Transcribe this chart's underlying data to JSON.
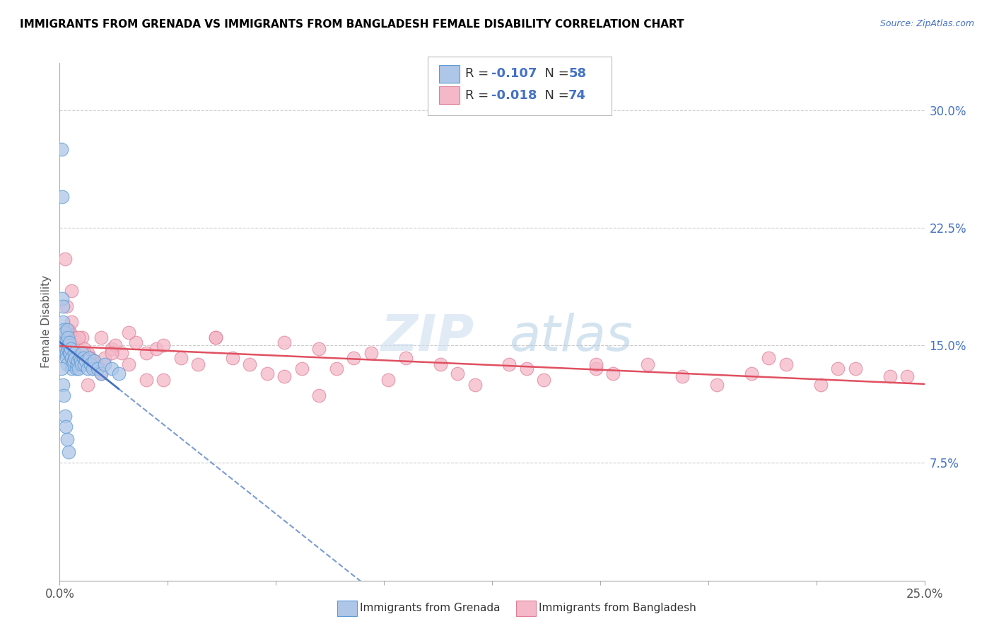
{
  "title": "IMMIGRANTS FROM GRENADA VS IMMIGRANTS FROM BANGLADESH FEMALE DISABILITY CORRELATION CHART",
  "source": "Source: ZipAtlas.com",
  "ylabel": "Female Disability",
  "y_ticks": [
    7.5,
    15.0,
    22.5,
    30.0
  ],
  "y_tick_labels": [
    "7.5%",
    "15.0%",
    "22.5%",
    "30.0%"
  ],
  "x_range": [
    0.0,
    25.0
  ],
  "y_range": [
    0.0,
    33.0
  ],
  "color_grenada": "#aec6e8",
  "color_bangladesh": "#f4b8c8",
  "color_grenada_edge": "#5b9bd5",
  "color_bangladesh_edge": "#e08098",
  "color_grenada_line": "#4472c4",
  "color_bangladesh_line": "#e05060",
  "watermark_zip": "#c8dff0",
  "watermark_atlas": "#a0b8d0",
  "grenada_x": [
    0.05,
    0.07,
    0.08,
    0.09,
    0.1,
    0.11,
    0.12,
    0.13,
    0.14,
    0.15,
    0.16,
    0.17,
    0.18,
    0.19,
    0.2,
    0.21,
    0.22,
    0.23,
    0.24,
    0.25,
    0.27,
    0.28,
    0.3,
    0.32,
    0.33,
    0.35,
    0.37,
    0.4,
    0.42,
    0.45,
    0.48,
    0.5,
    0.52,
    0.55,
    0.58,
    0.6,
    0.63,
    0.65,
    0.68,
    0.7,
    0.75,
    0.8,
    0.85,
    0.9,
    0.95,
    1.0,
    1.1,
    1.2,
    1.3,
    1.5,
    1.7,
    0.06,
    0.09,
    0.12,
    0.15,
    0.18,
    0.22,
    0.25
  ],
  "grenada_y": [
    27.5,
    24.5,
    18.0,
    17.5,
    16.5,
    16.0,
    15.5,
    15.2,
    14.8,
    14.5,
    15.8,
    15.2,
    14.8,
    14.5,
    14.2,
    13.8,
    16.0,
    15.5,
    14.8,
    15.0,
    14.5,
    15.2,
    14.5,
    14.8,
    13.5,
    14.2,
    13.8,
    14.0,
    14.5,
    14.2,
    13.5,
    13.8,
    14.0,
    13.5,
    14.2,
    14.0,
    13.8,
    14.5,
    14.2,
    13.8,
    14.0,
    13.5,
    14.2,
    13.8,
    13.5,
    14.0,
    13.5,
    13.2,
    13.8,
    13.5,
    13.2,
    13.5,
    12.5,
    11.8,
    10.5,
    9.8,
    9.0,
    8.2
  ],
  "bangladesh_x": [
    0.15,
    0.2,
    0.25,
    0.3,
    0.35,
    0.4,
    0.45,
    0.5,
    0.55,
    0.6,
    0.65,
    0.7,
    0.8,
    0.9,
    1.0,
    1.1,
    1.2,
    1.3,
    1.5,
    1.6,
    1.8,
    2.0,
    2.2,
    2.5,
    2.8,
    3.0,
    3.5,
    4.0,
    4.5,
    5.0,
    5.5,
    6.0,
    6.5,
    7.0,
    7.5,
    8.0,
    8.5,
    9.0,
    9.5,
    10.0,
    11.0,
    12.0,
    13.0,
    14.0,
    15.5,
    16.0,
    17.0,
    18.0,
    19.0,
    20.0,
    21.0,
    22.0,
    23.0,
    24.0,
    0.25,
    0.35,
    0.55,
    0.7,
    1.0,
    1.5,
    2.0,
    3.0,
    4.5,
    6.5,
    7.5,
    11.5,
    13.5,
    15.5,
    20.5,
    22.5,
    24.5,
    0.8,
    1.2,
    2.5
  ],
  "bangladesh_y": [
    20.5,
    17.5,
    16.0,
    15.8,
    18.5,
    15.5,
    15.2,
    14.8,
    14.5,
    14.2,
    15.5,
    14.8,
    14.5,
    14.2,
    14.0,
    13.8,
    15.5,
    14.2,
    14.8,
    15.0,
    14.5,
    13.8,
    15.2,
    14.5,
    14.8,
    15.0,
    14.2,
    13.8,
    15.5,
    14.2,
    13.8,
    13.2,
    15.2,
    13.5,
    14.8,
    13.5,
    14.2,
    14.5,
    12.8,
    14.2,
    13.8,
    12.5,
    13.8,
    12.8,
    13.5,
    13.2,
    13.8,
    13.0,
    12.5,
    13.2,
    13.8,
    12.5,
    13.5,
    13.0,
    15.2,
    16.5,
    15.5,
    14.5,
    13.5,
    14.5,
    15.8,
    12.8,
    15.5,
    13.0,
    11.8,
    13.2,
    13.5,
    13.8,
    14.2,
    13.5,
    13.0,
    12.5,
    13.2,
    12.8
  ]
}
